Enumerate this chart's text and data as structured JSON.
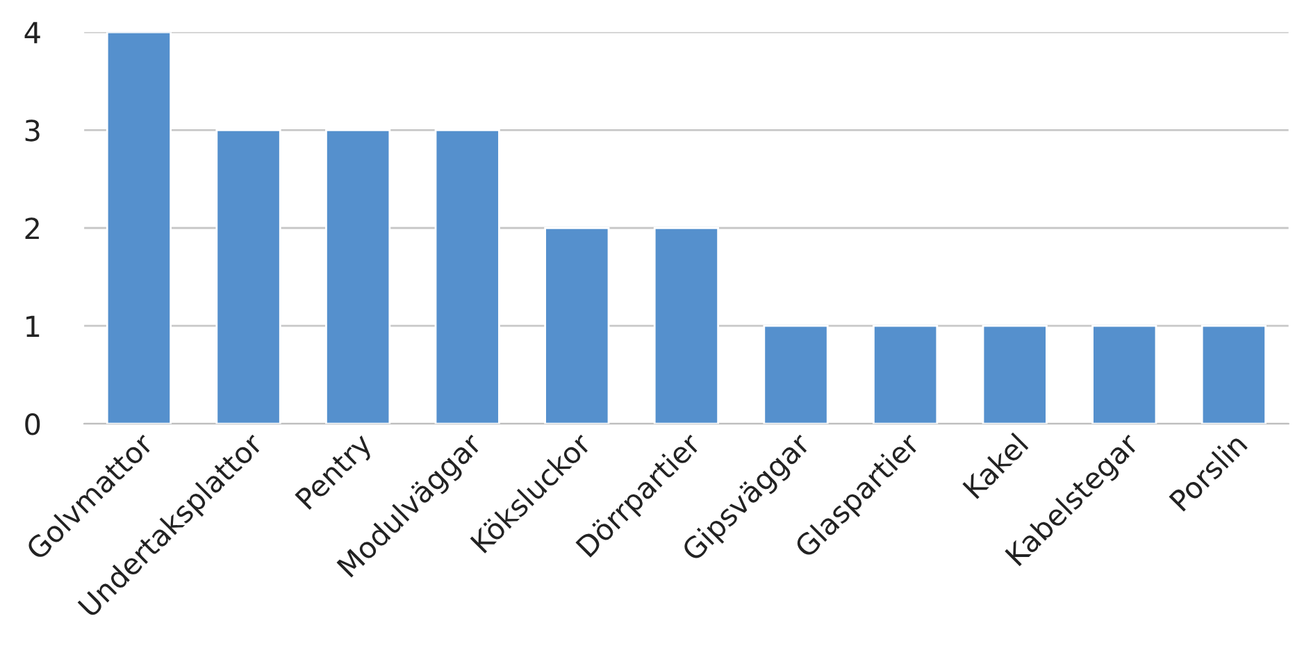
{
  "chart_data": {
    "type": "bar",
    "categories": [
      "Golvmattor",
      "Undertaksplattor",
      "Pentry",
      "Modulväggar",
      "Köksluckor",
      "Dörrpartier",
      "Gipsväggar",
      "Glaspartier",
      "Kakel",
      "Kabelstegar",
      "Porslin"
    ],
    "values": [
      4,
      3,
      3,
      3,
      2,
      2,
      1,
      1,
      1,
      1,
      1
    ],
    "color": "#5590cd",
    "ylim": [
      0,
      4
    ],
    "yticks": [
      0,
      1,
      2,
      3,
      4
    ],
    "grid": "y"
  }
}
